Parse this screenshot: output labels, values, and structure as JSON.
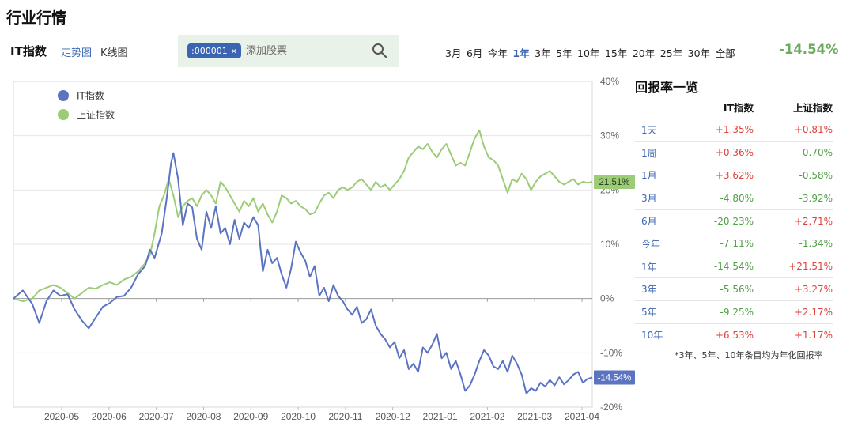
{
  "page": {
    "title": "行业行情"
  },
  "toolbar": {
    "index_name": "IT指数",
    "view_trend_label": "走势图",
    "view_kline_label": "K线图",
    "stock_tag": ":000001 ×",
    "search_placeholder": "添加股票",
    "ranges": [
      "3月",
      "6月",
      "今年",
      "1年",
      "3年",
      "5年",
      "10年",
      "15年",
      "20年",
      "25年",
      "30年",
      "全部"
    ],
    "active_range": "1年",
    "period_return": "-14.54%"
  },
  "colors": {
    "it": "#5b74c2",
    "sh": "#9ccc78",
    "pos": "#e0413a",
    "neg": "#4f9f45",
    "accent": "#3b65b2"
  },
  "chart_data": {
    "type": "line",
    "x_ticks": [
      "2020-05",
      "2020-06",
      "2020-07",
      "2020-08",
      "2020-09",
      "2020-10",
      "2020-11",
      "2020-12",
      "2021-01",
      "2021-02",
      "2021-03",
      "2021-04"
    ],
    "y_ticks": [
      "40%",
      "30%",
      "20%",
      "10%",
      "0%",
      "-10%",
      "-20%"
    ],
    "ylim": [
      -20,
      40
    ],
    "grid": true,
    "legend": "top-left",
    "series": [
      {
        "name": "IT指数",
        "color": "#5b74c2",
        "end_label": "-14.54%",
        "points": [
          [
            0,
            0
          ],
          [
            4,
            1.5
          ],
          [
            8,
            -1
          ],
          [
            11,
            -4.5
          ],
          [
            14,
            -0.5
          ],
          [
            17,
            1.5
          ],
          [
            20,
            0.5
          ],
          [
            23,
            0.8
          ],
          [
            26,
            -2
          ],
          [
            29,
            -4
          ],
          [
            32,
            -5.5
          ],
          [
            35,
            -3.5
          ],
          [
            38,
            -1.5
          ],
          [
            41,
            -0.8
          ],
          [
            44,
            0.3
          ],
          [
            47,
            0.5
          ],
          [
            50,
            2
          ],
          [
            53,
            4.5
          ],
          [
            56,
            6
          ],
          [
            58,
            9
          ],
          [
            60,
            7.5
          ],
          [
            63,
            12
          ],
          [
            65,
            18
          ],
          [
            67,
            25
          ],
          [
            68,
            26.8
          ],
          [
            70,
            22
          ],
          [
            72,
            13.5
          ],
          [
            74,
            17.5
          ],
          [
            76,
            16.8
          ],
          [
            78,
            11
          ],
          [
            80,
            9
          ],
          [
            82,
            16
          ],
          [
            84,
            13
          ],
          [
            86,
            17
          ],
          [
            88,
            12
          ],
          [
            90,
            13
          ],
          [
            92,
            10
          ],
          [
            94,
            14.5
          ],
          [
            96,
            11
          ],
          [
            98,
            14
          ],
          [
            100,
            13
          ],
          [
            102,
            15
          ],
          [
            104,
            13.5
          ],
          [
            106,
            5
          ],
          [
            108,
            9
          ],
          [
            110,
            6.5
          ],
          [
            112,
            7.5
          ],
          [
            114,
            4.5
          ],
          [
            116,
            2
          ],
          [
            118,
            5.5
          ],
          [
            120,
            10.5
          ],
          [
            122,
            8.5
          ],
          [
            124,
            7
          ],
          [
            126,
            4
          ],
          [
            128,
            6
          ],
          [
            130,
            0.5
          ],
          [
            132,
            2
          ],
          [
            134,
            -0.5
          ],
          [
            136,
            2.5
          ],
          [
            138,
            0.5
          ],
          [
            140,
            -0.5
          ],
          [
            142,
            -2
          ],
          [
            144,
            -3
          ],
          [
            146,
            -1.5
          ],
          [
            148,
            -4.5
          ],
          [
            150,
            -3.8
          ],
          [
            152,
            -2
          ],
          [
            154,
            -5
          ],
          [
            156,
            -6.5
          ],
          [
            158,
            -7.5
          ],
          [
            160,
            -9
          ],
          [
            162,
            -8
          ],
          [
            164,
            -11
          ],
          [
            166,
            -9.5
          ],
          [
            168,
            -13
          ],
          [
            170,
            -12
          ],
          [
            172,
            -13.5
          ],
          [
            174,
            -9
          ],
          [
            176,
            -10
          ],
          [
            178,
            -8.5
          ],
          [
            180,
            -6.5
          ],
          [
            182,
            -11
          ],
          [
            184,
            -10
          ],
          [
            186,
            -13
          ],
          [
            188,
            -11.5
          ],
          [
            190,
            -14
          ],
          [
            192,
            -17
          ],
          [
            194,
            -16
          ],
          [
            196,
            -14
          ],
          [
            198,
            -11.5
          ],
          [
            200,
            -9.5
          ],
          [
            202,
            -10.5
          ],
          [
            204,
            -12.5
          ],
          [
            206,
            -13
          ],
          [
            208,
            -11.5
          ],
          [
            210,
            -13.5
          ],
          [
            212,
            -10.5
          ],
          [
            214,
            -12
          ],
          [
            216,
            -14
          ],
          [
            218,
            -17.5
          ],
          [
            220,
            -16.5
          ],
          [
            222,
            -17
          ],
          [
            224,
            -15.5
          ],
          [
            226,
            -16.2
          ],
          [
            228,
            -15
          ],
          [
            230,
            -16
          ],
          [
            232,
            -14.5
          ],
          [
            234,
            -15.8
          ],
          [
            236,
            -15
          ],
          [
            238,
            -14
          ],
          [
            240,
            -13.5
          ],
          [
            242,
            -15.5
          ],
          [
            244,
            -14.8
          ],
          [
            246,
            -14.54
          ]
        ]
      },
      {
        "name": "上证指数",
        "color": "#9ccc78",
        "end_label": "21.51%",
        "points": [
          [
            0,
            0
          ],
          [
            4,
            -0.5
          ],
          [
            8,
            0
          ],
          [
            11,
            1.5
          ],
          [
            14,
            2
          ],
          [
            17,
            2.5
          ],
          [
            20,
            2
          ],
          [
            23,
            1
          ],
          [
            26,
            0
          ],
          [
            29,
            1
          ],
          [
            32,
            2
          ],
          [
            35,
            1.8
          ],
          [
            38,
            2.5
          ],
          [
            41,
            3
          ],
          [
            44,
            2.5
          ],
          [
            47,
            3.5
          ],
          [
            50,
            4
          ],
          [
            53,
            5
          ],
          [
            56,
            6.5
          ],
          [
            58,
            8
          ],
          [
            60,
            12
          ],
          [
            62,
            17
          ],
          [
            64,
            19
          ],
          [
            66,
            22
          ],
          [
            68,
            19
          ],
          [
            70,
            15
          ],
          [
            72,
            17
          ],
          [
            74,
            18
          ],
          [
            76,
            18.5
          ],
          [
            78,
            17
          ],
          [
            80,
            19
          ],
          [
            82,
            20
          ],
          [
            84,
            19
          ],
          [
            86,
            17.5
          ],
          [
            88,
            21.5
          ],
          [
            90,
            20.5
          ],
          [
            92,
            19
          ],
          [
            94,
            17.5
          ],
          [
            96,
            16
          ],
          [
            98,
            18
          ],
          [
            100,
            17
          ],
          [
            102,
            18.5
          ],
          [
            104,
            16
          ],
          [
            106,
            17.5
          ],
          [
            108,
            15.5
          ],
          [
            110,
            14
          ],
          [
            112,
            16
          ],
          [
            114,
            19
          ],
          [
            116,
            18.5
          ],
          [
            118,
            17.5
          ],
          [
            120,
            18
          ],
          [
            122,
            17
          ],
          [
            124,
            16.5
          ],
          [
            126,
            15.5
          ],
          [
            128,
            15.8
          ],
          [
            130,
            17.5
          ],
          [
            132,
            19
          ],
          [
            134,
            19.5
          ],
          [
            136,
            18.5
          ],
          [
            138,
            20
          ],
          [
            140,
            20.5
          ],
          [
            142,
            20
          ],
          [
            144,
            20.5
          ],
          [
            146,
            21.5
          ],
          [
            148,
            22
          ],
          [
            150,
            21
          ],
          [
            152,
            20
          ],
          [
            154,
            21.5
          ],
          [
            156,
            20.5
          ],
          [
            158,
            21
          ],
          [
            160,
            20
          ],
          [
            162,
            21
          ],
          [
            164,
            22
          ],
          [
            166,
            23.5
          ],
          [
            168,
            26
          ],
          [
            170,
            27
          ],
          [
            172,
            28
          ],
          [
            174,
            27.5
          ],
          [
            176,
            28.5
          ],
          [
            178,
            27
          ],
          [
            180,
            26
          ],
          [
            182,
            27.5
          ],
          [
            184,
            28.5
          ],
          [
            186,
            26.5
          ],
          [
            188,
            24.5
          ],
          [
            190,
            25
          ],
          [
            192,
            24.5
          ],
          [
            194,
            27
          ],
          [
            196,
            29.5
          ],
          [
            198,
            31
          ],
          [
            200,
            28
          ],
          [
            202,
            26
          ],
          [
            204,
            25.5
          ],
          [
            206,
            24.5
          ],
          [
            208,
            22
          ],
          [
            210,
            19.5
          ],
          [
            212,
            22
          ],
          [
            214,
            21.5
          ],
          [
            216,
            23
          ],
          [
            218,
            22
          ],
          [
            220,
            20
          ],
          [
            222,
            21.5
          ],
          [
            224,
            22.5
          ],
          [
            226,
            23
          ],
          [
            228,
            23.5
          ],
          [
            230,
            22.5
          ],
          [
            232,
            21.5
          ],
          [
            234,
            21
          ],
          [
            236,
            21.5
          ],
          [
            238,
            22
          ],
          [
            240,
            21
          ],
          [
            242,
            21.5
          ],
          [
            244,
            21.3
          ],
          [
            246,
            21.51
          ]
        ]
      }
    ]
  },
  "returns": {
    "title": "回报率一览",
    "columns": [
      "",
      "IT指数",
      "上证指数"
    ],
    "rows": [
      [
        "1天",
        "+1.35%",
        "+0.81%"
      ],
      [
        "1周",
        "+0.36%",
        "-0.70%"
      ],
      [
        "1月",
        "+3.62%",
        "-0.58%"
      ],
      [
        "3月",
        "-4.80%",
        "-3.92%"
      ],
      [
        "6月",
        "-20.23%",
        "+2.71%"
      ],
      [
        "今年",
        "-7.11%",
        "-1.34%"
      ],
      [
        "1年",
        "-14.54%",
        "+21.51%"
      ],
      [
        "3年",
        "-5.56%",
        "+3.27%"
      ],
      [
        "5年",
        "-9.25%",
        "+2.17%"
      ],
      [
        "10年",
        "+6.53%",
        "+1.17%"
      ]
    ],
    "note": "*3年、5年、10年条目均为年化回报率"
  }
}
